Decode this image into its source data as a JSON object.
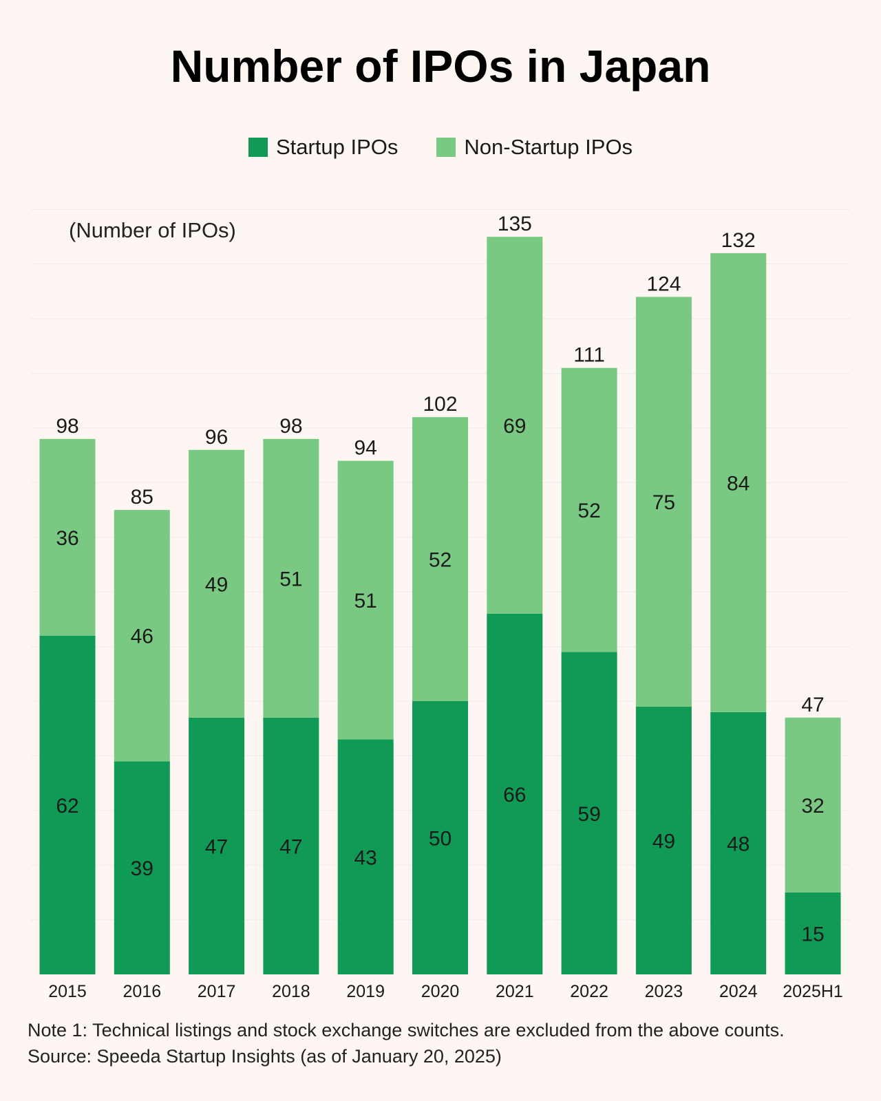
{
  "chart_data": {
    "type": "bar",
    "stacked": true,
    "title": "Number of IPOs in Japan",
    "ylabel": "(Number of IPOs)",
    "xlabel": "",
    "categories": [
      "2015",
      "2016",
      "2017",
      "2018",
      "2019",
      "2020",
      "2021",
      "2022",
      "2023",
      "2024",
      "2025H1"
    ],
    "series": [
      {
        "name": "Startup IPOs",
        "color": "#109a56",
        "values": [
          62,
          39,
          47,
          47,
          43,
          50,
          66,
          59,
          49,
          48,
          15
        ]
      },
      {
        "name": "Non-Startup IPOs",
        "color": "#7ac983",
        "values": [
          36,
          46,
          49,
          51,
          51,
          52,
          69,
          52,
          75,
          84,
          32
        ]
      }
    ],
    "totals": [
      98,
      85,
      96,
      98,
      94,
      102,
      135,
      111,
      124,
      132,
      47
    ],
    "ylim": [
      0,
      140
    ],
    "grid": "faint horizontal",
    "legend_position": "top-center"
  },
  "notes": {
    "note1": "Note 1: Technical listings and stock exchange switches are excluded from the above counts.",
    "source": "Source: Speeda Startup Insights (as of January 20, 2025)"
  }
}
